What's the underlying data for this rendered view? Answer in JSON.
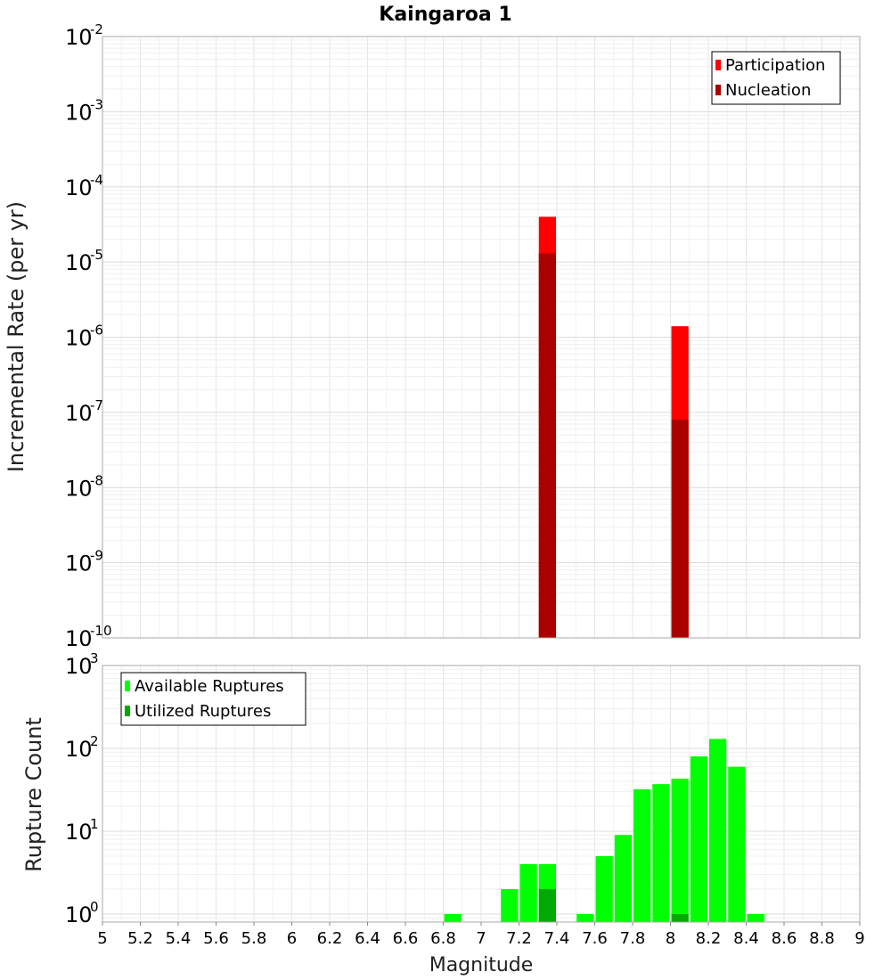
{
  "chart_data": [
    {
      "type": "bar",
      "title": "Kaingaroa 1",
      "xlabel": "Magnitude",
      "ylabel": "Incremental Rate (per yr)",
      "yscale": "log",
      "xlim": [
        5,
        9
      ],
      "ylim": [
        1e-10,
        0.01
      ],
      "y_ticks": [
        {
          "base": "10",
          "exp": "-10",
          "value": 1e-10
        },
        {
          "base": "10",
          "exp": "-9",
          "value": 1e-09
        },
        {
          "base": "10",
          "exp": "-8",
          "value": 1e-08
        },
        {
          "base": "10",
          "exp": "-7",
          "value": 1e-07
        },
        {
          "base": "10",
          "exp": "-6",
          "value": 1e-06
        },
        {
          "base": "10",
          "exp": "-5",
          "value": 1e-05
        },
        {
          "base": "10",
          "exp": "-4",
          "value": 0.0001
        },
        {
          "base": "10",
          "exp": "-3",
          "value": 0.001
        },
        {
          "base": "10",
          "exp": "-2",
          "value": 0.01
        }
      ],
      "grid": true,
      "legend_position": "top-right",
      "bar_width": 0.1,
      "series": [
        {
          "name": "Participation",
          "color": "#ff0000",
          "x": [
            7.35,
            8.05
          ],
          "values": [
            4e-05,
            1.4e-06
          ]
        },
        {
          "name": "Nucleation",
          "color": "#aa0000",
          "x": [
            7.35,
            8.05
          ],
          "values": [
            1.3e-05,
            8e-08
          ]
        }
      ]
    },
    {
      "type": "bar",
      "xlabel": "Magnitude",
      "ylabel": "Rupture Count",
      "yscale": "log",
      "xlim": [
        5,
        9
      ],
      "ylim": [
        0.8,
        1000
      ],
      "x_ticks": [
        "5",
        "5.2",
        "5.4",
        "5.6",
        "5.8",
        "6",
        "6.2",
        "6.4",
        "6.6",
        "6.8",
        "7",
        "7.2",
        "7.4",
        "7.6",
        "7.8",
        "8",
        "8.2",
        "8.4",
        "8.6",
        "8.8",
        "9"
      ],
      "y_ticks": [
        {
          "base": "10",
          "exp": "0",
          "value": 1
        },
        {
          "base": "10",
          "exp": "1",
          "value": 10
        },
        {
          "base": "10",
          "exp": "2",
          "value": 100
        },
        {
          "base": "10",
          "exp": "3",
          "value": 1000
        }
      ],
      "grid": true,
      "legend_position": "top-left",
      "bar_width": 0.1,
      "series": [
        {
          "name": "Available Ruptures",
          "color": "#00ff00",
          "x": [
            6.85,
            7.15,
            7.25,
            7.35,
            7.55,
            7.65,
            7.75,
            7.85,
            7.95,
            8.05,
            8.15,
            8.25,
            8.35,
            8.45
          ],
          "values": [
            1,
            2,
            4,
            4,
            1,
            5,
            9,
            32,
            37,
            43,
            80,
            130,
            60,
            1
          ]
        },
        {
          "name": "Utilized Ruptures",
          "color": "#00aa00",
          "x": [
            7.35,
            8.05
          ],
          "values": [
            2,
            1
          ]
        }
      ]
    }
  ]
}
